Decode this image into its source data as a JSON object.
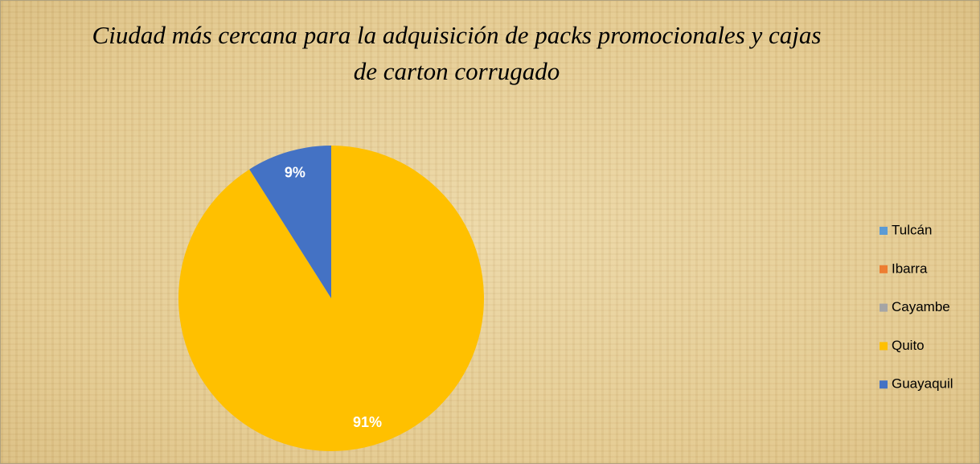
{
  "chart_data": {
    "type": "pie",
    "title": "Ciudad más cercana para la adquisición de packs promocionales y cajas de carton corrugado",
    "categories": [
      "Tulcán",
      "Ibarra",
      "Cayambe",
      "Quito",
      "Guayaquil"
    ],
    "values": [
      0,
      0,
      0,
      91,
      9
    ],
    "value_labels": [
      null,
      null,
      null,
      "91%",
      "9%"
    ],
    "colors": [
      "#5b9bd5",
      "#ed7d31",
      "#a5a5a5",
      "#ffc000",
      "#4472c4"
    ],
    "legend": "right"
  }
}
